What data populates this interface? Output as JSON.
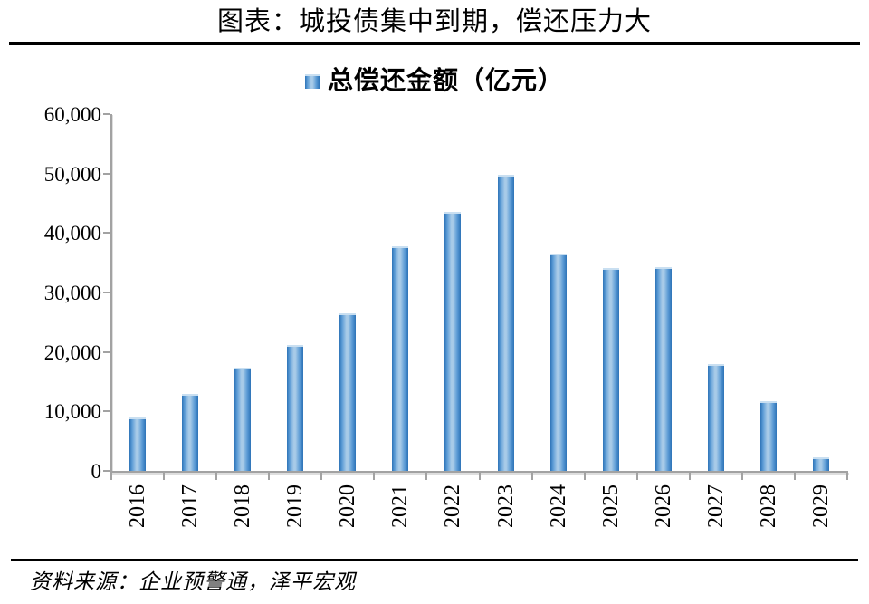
{
  "page": {
    "title": "图表：城投债集中到期，偿还压力大",
    "source": "资料来源：企业预警通，泽平宏观"
  },
  "chart_data": {
    "type": "bar",
    "title": "总偿还金额（亿元）",
    "legend_label": "总偿还金额（亿元）",
    "legend_position": "top",
    "categories": [
      "2016",
      "2017",
      "2018",
      "2019",
      "2020",
      "2021",
      "2022",
      "2023",
      "2024",
      "2025",
      "2026",
      "2027",
      "2028",
      "2029"
    ],
    "values": [
      9000,
      12900,
      17300,
      21100,
      26500,
      37700,
      43500,
      49800,
      36600,
      34100,
      34300,
      18000,
      11700,
      2300
    ],
    "xlabel": "",
    "ylabel": "",
    "ylim": [
      0,
      60000
    ],
    "yticks": [
      0,
      10000,
      20000,
      30000,
      40000,
      50000,
      60000
    ],
    "ytick_labels": [
      "0",
      "10,000",
      "20,000",
      "30,000",
      "40,000",
      "50,000",
      "60,000"
    ],
    "grid": false,
    "colors": {
      "bar_dark": "#2d73b7",
      "bar_mid": "#5b9bd5",
      "bar_light": "#a8cbe8",
      "bar_top_edge": "#c9dff1",
      "axis": "#a2a2a2",
      "axis_shadow": "#dedede",
      "text": "#000000",
      "rule": "#000000"
    }
  }
}
